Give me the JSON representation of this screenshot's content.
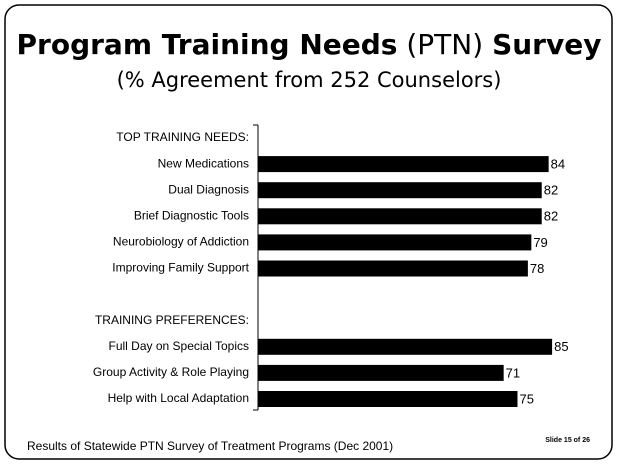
{
  "chart_data": {
    "type": "bar",
    "title_parts": [
      "Program Training Needs",
      "(PTN)",
      "Survey"
    ],
    "subtitle": "(% Agreement from 252 Counselors)",
    "categories": [
      "TOP TRAINING NEEDS:",
      "New Medications",
      "Dual Diagnosis",
      "Brief Diagnostic Tools",
      "Neurobiology of Addiction",
      "Improving Family Support",
      null,
      "TRAINING PREFERENCES:",
      "Full Day on Special Topics",
      "Group Activity & Role Playing",
      "Help with Local Adaptation"
    ],
    "values": [
      null,
      84,
      82,
      82,
      79,
      78,
      null,
      null,
      85,
      71,
      75
    ],
    "color": "#000000",
    "xlim": [
      0,
      100
    ],
    "footer": "Results of Statewide PTN Survey of Treatment Programs (Dec 2001)",
    "slide_number": "Slide 15 of 26"
  }
}
